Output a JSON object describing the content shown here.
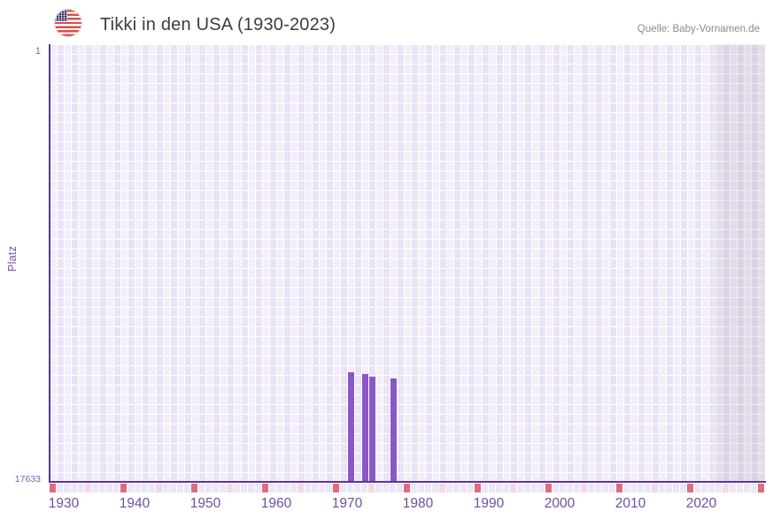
{
  "header": {
    "title": "Tikki in den USA (1930-2023)",
    "source": "Quelle: Baby-Vornamen.de",
    "flag_icon": "us-flag-icon"
  },
  "chart_data": {
    "type": "bar",
    "title": "Tikki in den USA (1930-2023)",
    "xlabel": "",
    "ylabel": "Platz",
    "x_ticks": [
      "1930",
      "1940",
      "1950",
      "1960",
      "1970",
      "1980",
      "1990",
      "2000",
      "2010",
      "2020"
    ],
    "y_ticks": {
      "top": "1",
      "bottom": "17633"
    },
    "x_range": [
      1930,
      2030
    ],
    "data_range": [
      1930,
      2023
    ],
    "future_band": {
      "start_year": 2024,
      "end_year": 2030
    },
    "ylim": [
      1,
      17633
    ],
    "y_axis_inverted": true,
    "grid": true,
    "points": [
      {
        "year": 1972,
        "rank": 13204
      },
      {
        "year": 1974,
        "rank": 13276
      },
      {
        "year": 1975,
        "rank": 13383
      },
      {
        "year": 1978,
        "rank": 13465
      }
    ],
    "year_markers": {
      "decade_interval": 10,
      "half_decade_interval": 5,
      "decade_color": "#e06c7c",
      "half_decade_color": "#f3d9e3"
    },
    "colors": {
      "bar": "#8a58c5",
      "axis_line": "#5a3795",
      "tick_label": "#6f4fa5",
      "grid_cell_light": "#f3eefb",
      "grid_cell_dark": "#e9e3f5",
      "future_overlay": "rgba(84,78,102,0.10)",
      "title_text": "#3d3d3d",
      "source_text": "#8c8c8c"
    }
  }
}
